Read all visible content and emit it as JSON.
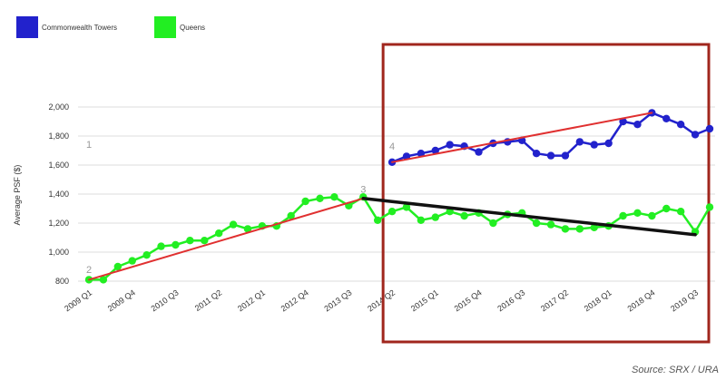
{
  "chart_data": {
    "type": "line",
    "ylabel": "Average PSF ($)",
    "y_ticks": [
      "800",
      "1,000",
      "1,200",
      "1,400",
      "1,600",
      "1,800",
      "2,000"
    ],
    "ylim": [
      800,
      2000
    ],
    "grid": true,
    "legend_position": "top-left",
    "x_tick_labels": [
      "2009 Q1",
      "2009 Q4",
      "2010 Q3",
      "2011 Q2",
      "2012 Q1",
      "2012 Q4",
      "2013 Q3",
      "2014 Q2",
      "2015 Q1",
      "2015 Q4",
      "2016 Q3",
      "2017 Q2",
      "2018 Q1",
      "2018 Q4",
      "2019 Q3"
    ],
    "x_range": [
      "2009 Q1",
      "2019 Q4"
    ],
    "series": [
      {
        "name": "Commonwealth Towers",
        "color": "#2222cc",
        "start": "2014 Q2",
        "values": [
          1620,
          1660,
          1680,
          1700,
          1740,
          1730,
          1690,
          1750,
          1760,
          1770,
          1680,
          1665,
          1665,
          1760,
          1740,
          1750,
          1900,
          1880,
          1960,
          1920,
          1880,
          1810,
          1850
        ]
      },
      {
        "name": "Queens",
        "color": "#22ee22",
        "start": "2009 Q1",
        "values": [
          810,
          810,
          900,
          940,
          980,
          1040,
          1050,
          1080,
          1080,
          1130,
          1190,
          1160,
          1180,
          1180,
          1250,
          1350,
          1370,
          1380,
          1320,
          1380,
          1220,
          1280,
          1310,
          1220,
          1240,
          1280,
          1250,
          1270,
          1200,
          1260,
          1270,
          1200,
          1190,
          1160,
          1160,
          1170,
          1180,
          1250,
          1270,
          1250,
          1300,
          1280,
          1140,
          1310
        ]
      }
    ],
    "trend_lines": [
      {
        "from": [
          "2009 Q1",
          810
        ],
        "to": [
          "2013 Q4",
          1370
        ],
        "color": "#e03030"
      },
      {
        "from": [
          "2013 Q4",
          1370
        ],
        "to": [
          "2019 Q3",
          1120
        ],
        "color": "#111111"
      },
      {
        "from": [
          "2014 Q2",
          1620
        ],
        "to": [
          "2018 Q4",
          1960
        ],
        "color": "#e03030"
      }
    ],
    "annotations": [
      {
        "text": "1",
        "at": [
          "2009 Q1",
          1720
        ]
      },
      {
        "text": "2",
        "at": [
          "2009 Q1",
          855
        ]
      },
      {
        "text": "3",
        "at": [
          "2013 Q4",
          1410
        ]
      },
      {
        "text": "4",
        "at": [
          "2014 Q2",
          1705
        ]
      }
    ],
    "highlight_box": {
      "from": "2014 Q1",
      "to": "2019 Q4",
      "color": "#a0261d"
    },
    "source": "Source: SRX / URA"
  }
}
